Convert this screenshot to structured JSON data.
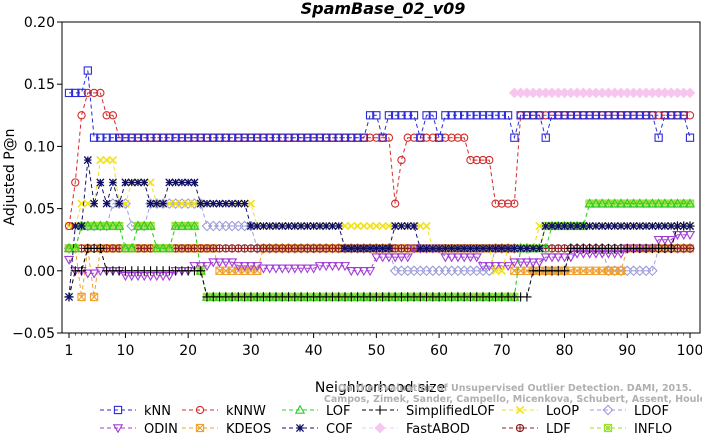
{
  "chart_data": {
    "type": "line",
    "title": "SpamBase_02_v09",
    "xlabel": "Neighborhood size",
    "ylabel": "Adjusted P@n",
    "xlim": [
      1,
      100
    ],
    "ylim": [
      -0.05,
      0.2
    ],
    "xticks": [
      1,
      10,
      20,
      30,
      40,
      50,
      60,
      70,
      80,
      90,
      100
    ],
    "yticks": [
      -0.05,
      0.0,
      0.05,
      0.1,
      0.15,
      0.2
    ],
    "ytick_labels": [
      "−0.05",
      "0.00",
      "0.05",
      "0.10",
      "0.15",
      "0.20"
    ],
    "grid": false,
    "legend_position": "bottom",
    "credit": [
      "Campos, Zimek, Sander, Campello, Micenkova, Schubert, Assent, Houle",
      "On the Evaluation of Unsupervised Outlier Detection. DAMI, 2015."
    ],
    "series": [
      {
        "name": "kNN",
        "color": "#2b2bd8",
        "marker": "square",
        "segments": [
          [
            1,
            3,
            0.143
          ],
          [
            4,
            4,
            0.161
          ],
          [
            5,
            48,
            0.107
          ],
          [
            49,
            50,
            0.125
          ],
          [
            51,
            51,
            0.107
          ],
          [
            52,
            56,
            0.125
          ],
          [
            57,
            57,
            0.107
          ],
          [
            58,
            59,
            0.125
          ],
          [
            60,
            60,
            0.107
          ],
          [
            61,
            71,
            0.125
          ],
          [
            72,
            72,
            0.107
          ],
          [
            73,
            76,
            0.125
          ],
          [
            77,
            77,
            0.107
          ],
          [
            78,
            94,
            0.125
          ],
          [
            95,
            95,
            0.107
          ],
          [
            96,
            99,
            0.125
          ],
          [
            100,
            100,
            0.107
          ]
        ]
      },
      {
        "name": "kNNW",
        "color": "#d42a2a",
        "marker": "circle",
        "segments": [
          [
            1,
            1,
            0.036
          ],
          [
            2,
            2,
            0.071
          ],
          [
            3,
            3,
            0.125
          ],
          [
            4,
            6,
            0.143
          ],
          [
            7,
            8,
            0.125
          ],
          [
            9,
            52,
            0.107
          ],
          [
            53,
            53,
            0.054
          ],
          [
            54,
            54,
            0.089
          ],
          [
            55,
            62,
            0.107
          ],
          [
            63,
            64,
            0.107
          ],
          [
            65,
            68,
            0.089
          ],
          [
            69,
            70,
            0.054
          ],
          [
            71,
            72,
            0.054
          ],
          [
            73,
            100,
            0.125
          ]
        ]
      },
      {
        "name": "LOF",
        "color": "#2ecc2e",
        "marker": "triangle-up",
        "segments": [
          [
            1,
            2,
            0.018
          ],
          [
            3,
            7,
            0.036
          ],
          [
            8,
            9,
            0.036
          ],
          [
            10,
            11,
            0.018
          ],
          [
            12,
            14,
            0.036
          ],
          [
            15,
            17,
            0.018
          ],
          [
            18,
            21,
            0.036
          ],
          [
            22,
            22,
            0.0
          ],
          [
            23,
            67,
            -0.021
          ],
          [
            68,
            70,
            -0.021
          ],
          [
            71,
            72,
            -0.021
          ],
          [
            73,
            76,
            0.018
          ],
          [
            77,
            77,
            0.018
          ],
          [
            78,
            83,
            0.036
          ],
          [
            84,
            100,
            0.054
          ]
        ]
      },
      {
        "name": "SimplifiedLOF",
        "color": "#000000",
        "marker": "plus",
        "segments": [
          [
            1,
            1,
            -0.021
          ],
          [
            2,
            3,
            0.0
          ],
          [
            4,
            6,
            0.018
          ],
          [
            7,
            11,
            0.0
          ],
          [
            12,
            19,
            0.0
          ],
          [
            20,
            21,
            0.0
          ],
          [
            22,
            22,
            0.0
          ],
          [
            23,
            68,
            -0.021
          ],
          [
            69,
            69,
            -0.021
          ],
          [
            70,
            74,
            -0.021
          ],
          [
            75,
            80,
            0.0
          ],
          [
            81,
            88,
            0.018
          ],
          [
            89,
            97,
            0.018
          ],
          [
            98,
            100,
            0.036
          ]
        ]
      },
      {
        "name": "LoOP",
        "color": "#f2e21a",
        "marker": "x",
        "segments": [
          [
            1,
            2,
            0.036
          ],
          [
            3,
            5,
            0.054
          ],
          [
            6,
            8,
            0.089
          ],
          [
            9,
            10,
            0.054
          ],
          [
            11,
            14,
            0.071
          ],
          [
            15,
            20,
            0.054
          ],
          [
            21,
            30,
            0.054
          ],
          [
            31,
            42,
            0.036
          ],
          [
            43,
            48,
            0.036
          ],
          [
            49,
            58,
            0.036
          ],
          [
            59,
            68,
            0.018
          ],
          [
            69,
            70,
            0.0
          ],
          [
            71,
            75,
            0.018
          ],
          [
            76,
            80,
            0.036
          ],
          [
            81,
            100,
            0.036
          ]
        ]
      },
      {
        "name": "LDOF",
        "color": "#9e9eda",
        "marker": "diamond",
        "segments": [
          [
            1,
            2,
            0.018
          ],
          [
            3,
            7,
            0.036
          ],
          [
            8,
            10,
            0.054
          ],
          [
            11,
            13,
            0.036
          ],
          [
            14,
            22,
            0.054
          ],
          [
            23,
            30,
            0.036
          ],
          [
            31,
            38,
            0.018
          ],
          [
            39,
            45,
            0.018
          ],
          [
            46,
            52,
            0.018
          ],
          [
            53,
            55,
            0.0
          ],
          [
            56,
            68,
            0.0
          ],
          [
            69,
            74,
            0.018
          ],
          [
            75,
            80,
            0.0
          ],
          [
            81,
            86,
            0.018
          ],
          [
            87,
            94,
            0.0
          ],
          [
            95,
            100,
            0.018
          ]
        ]
      },
      {
        "name": "ODIN",
        "color": "#a23cd6",
        "marker": "triangle-down",
        "segments": [
          [
            1,
            1,
            0.009
          ],
          [
            2,
            3,
            0.0
          ],
          [
            4,
            5,
            -0.002
          ],
          [
            6,
            9,
            0.0
          ],
          [
            10,
            13,
            -0.004
          ],
          [
            14,
            17,
            -0.004
          ],
          [
            18,
            20,
            0.0
          ],
          [
            21,
            23,
            0.004
          ],
          [
            24,
            27,
            0.007
          ],
          [
            28,
            31,
            0.004
          ],
          [
            32,
            40,
            0.002
          ],
          [
            41,
            45,
            0.004
          ],
          [
            46,
            49,
            0.0
          ],
          [
            50,
            55,
            0.011
          ],
          [
            56,
            60,
            0.018
          ],
          [
            61,
            66,
            0.011
          ],
          [
            67,
            71,
            0.004
          ],
          [
            72,
            76,
            0.007
          ],
          [
            77,
            81,
            0.011
          ],
          [
            82,
            89,
            0.014
          ],
          [
            90,
            94,
            0.018
          ],
          [
            95,
            97,
            0.025
          ],
          [
            98,
            100,
            0.029
          ]
        ]
      },
      {
        "name": "KDEOS",
        "color": "#f0a030",
        "marker": "square-x",
        "segments": [
          [
            1,
            2,
            0.018
          ],
          [
            3,
            3,
            -0.021
          ],
          [
            4,
            4,
            0.018
          ],
          [
            5,
            5,
            -0.021
          ],
          [
            6,
            24,
            0.018
          ],
          [
            25,
            31,
            0.0
          ],
          [
            32,
            51,
            0.018
          ],
          [
            52,
            71,
            0.018
          ],
          [
            72,
            80,
            0.0
          ],
          [
            81,
            89,
            0.0
          ],
          [
            90,
            92,
            0.018
          ],
          [
            93,
            100,
            0.018
          ]
        ]
      },
      {
        "name": "COF",
        "color": "#101068",
        "marker": "asterisk",
        "segments": [
          [
            1,
            1,
            -0.021
          ],
          [
            2,
            3,
            0.036
          ],
          [
            4,
            4,
            0.089
          ],
          [
            5,
            5,
            0.054
          ],
          [
            6,
            6,
            0.071
          ],
          [
            7,
            7,
            0.054
          ],
          [
            8,
            8,
            0.071
          ],
          [
            9,
            9,
            0.054
          ],
          [
            10,
            13,
            0.071
          ],
          [
            14,
            16,
            0.054
          ],
          [
            17,
            21,
            0.071
          ],
          [
            22,
            29,
            0.054
          ],
          [
            30,
            38,
            0.036
          ],
          [
            39,
            44,
            0.036
          ],
          [
            45,
            46,
            0.018
          ],
          [
            47,
            52,
            0.018
          ],
          [
            53,
            56,
            0.036
          ],
          [
            57,
            58,
            0.018
          ],
          [
            59,
            68,
            0.018
          ],
          [
            69,
            72,
            0.018
          ],
          [
            73,
            76,
            0.018
          ],
          [
            77,
            86,
            0.036
          ],
          [
            87,
            92,
            0.036
          ],
          [
            93,
            100,
            0.036
          ]
        ]
      },
      {
        "name": "FastABOD",
        "color": "#f7c6ee",
        "marker": "diamond-filled",
        "segments": [
          [
            72,
            100,
            0.143
          ]
        ]
      },
      {
        "name": "LDF",
        "color": "#8c2020",
        "marker": "circle-plus",
        "segments": [
          [
            1,
            4,
            0.018
          ],
          [
            5,
            6,
            0.018
          ],
          [
            7,
            8,
            0.018
          ],
          [
            9,
            48,
            0.018
          ],
          [
            49,
            60,
            0.018
          ],
          [
            61,
            71,
            0.018
          ],
          [
            72,
            82,
            0.018
          ],
          [
            83,
            88,
            0.018
          ],
          [
            89,
            100,
            0.018
          ]
        ]
      },
      {
        "name": "INFLO",
        "color": "#9adf2a",
        "marker": "star-square",
        "segments": [
          [
            1,
            2,
            0.018
          ],
          [
            3,
            7,
            0.036
          ],
          [
            8,
            9,
            0.036
          ],
          [
            10,
            11,
            0.018
          ],
          [
            12,
            14,
            0.036
          ],
          [
            15,
            17,
            0.018
          ],
          [
            18,
            21,
            0.036
          ],
          [
            22,
            22,
            0.0
          ],
          [
            23,
            70,
            -0.021
          ],
          [
            71,
            72,
            -0.021
          ],
          [
            73,
            76,
            0.018
          ],
          [
            77,
            83,
            0.036
          ],
          [
            84,
            100,
            0.054
          ]
        ]
      }
    ]
  }
}
